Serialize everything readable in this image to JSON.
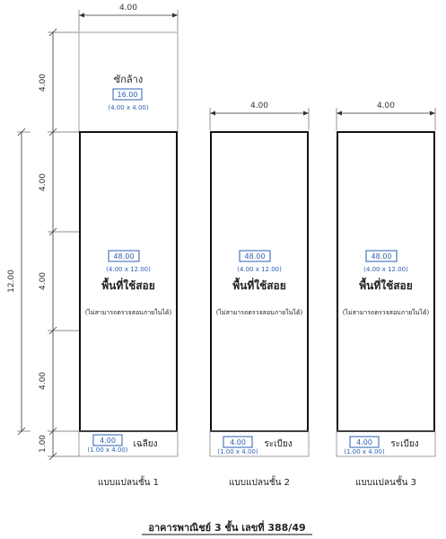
{
  "floor1": {
    "top_width_dim": "4.00",
    "left_dims": [
      "4.00",
      "4.00",
      "4.00",
      "4.00"
    ],
    "bottom_dim": "1.00",
    "overall_dim": "12.00",
    "top_label": "ซักล้าง",
    "top_area": "16.00",
    "top_size": "(4.00 x 4.00)",
    "main_area": "48.00",
    "main_size": "(4.00 x 12.00)",
    "main_label": "พื้นที่ใช้สอย",
    "main_note": "(ไม่สามารถตรวจสอบภายในได้)",
    "front_area": "4.00",
    "front_size": "(1.00 x 4.00)",
    "front_label": "เฉลียง",
    "caption": "แบบแปลนชั้น 1"
  },
  "floor2": {
    "top_width_dim": "4.00",
    "main_area": "48.00",
    "main_size": "(4.00 x 12.00)",
    "main_label": "พื้นที่ใช้สอย",
    "main_note": "(ไม่สามารถตรวจสอบภายในได้)",
    "front_area": "4.00",
    "front_size": "(1.00 x 4.00)",
    "front_label": "ระเบียง",
    "caption": "แบบแปลนชั้น 2"
  },
  "floor3": {
    "top_width_dim": "4.00",
    "main_area": "48.00",
    "main_size": "(4.00 x 12.00)",
    "main_label": "พื้นที่ใช้สอย",
    "main_note": "(ไม่สามารถตรวจสอบภายในได้)",
    "front_area": "4.00",
    "front_size": "(1.00 x 4.00)",
    "front_label": "ระเบียง",
    "caption": "แบบแปลนชั้น 3"
  },
  "title": "อาคารพาณิชย์ 3 ชั้น เลขที่ 388/49",
  "colors": {
    "line": "#222222",
    "area_blue": "#2b5fb3",
    "dim": "#333333"
  }
}
